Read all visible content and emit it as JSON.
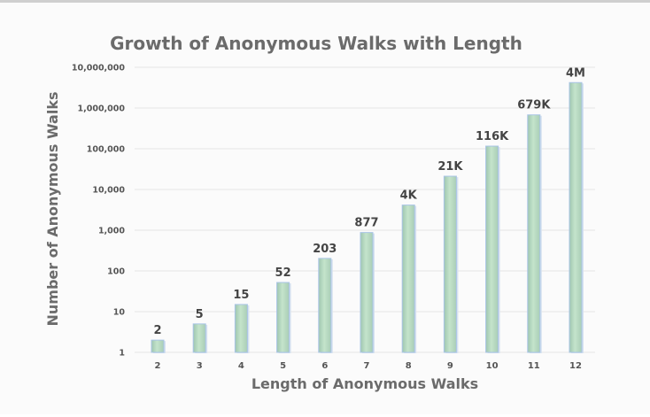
{
  "chart_data": {
    "type": "bar",
    "title": "Growth of Anonymous Walks with Length",
    "xlabel": "Length of Anonymous Walks",
    "ylabel": "Number of Anonymous Walks",
    "yscale": "log",
    "ylim": [
      1,
      10000000
    ],
    "grid": true,
    "categories": [
      "2",
      "3",
      "4",
      "5",
      "6",
      "7",
      "8",
      "9",
      "10",
      "11",
      "12"
    ],
    "values": [
      2,
      5,
      15,
      52,
      203,
      877,
      4140,
      21147,
      115975,
      678570,
      4213597
    ],
    "data_labels": [
      "2",
      "5",
      "15",
      "52",
      "203",
      "877",
      "4K",
      "21K",
      "116K",
      "679K",
      "4M"
    ],
    "ytick_values": [
      1,
      10,
      100,
      1000,
      10000,
      100000,
      1000000,
      10000000
    ],
    "ytick_labels": [
      "1",
      "10",
      "100",
      "1,000",
      "10,000",
      "100,000",
      "1,000,000",
      "10,000,000"
    ],
    "colors": {
      "bar_fill": "#b9dcc2",
      "bar_shade": "#9fc6b0",
      "bar_edge": "#a9c4e6",
      "text": "#6b6b6b"
    }
  }
}
